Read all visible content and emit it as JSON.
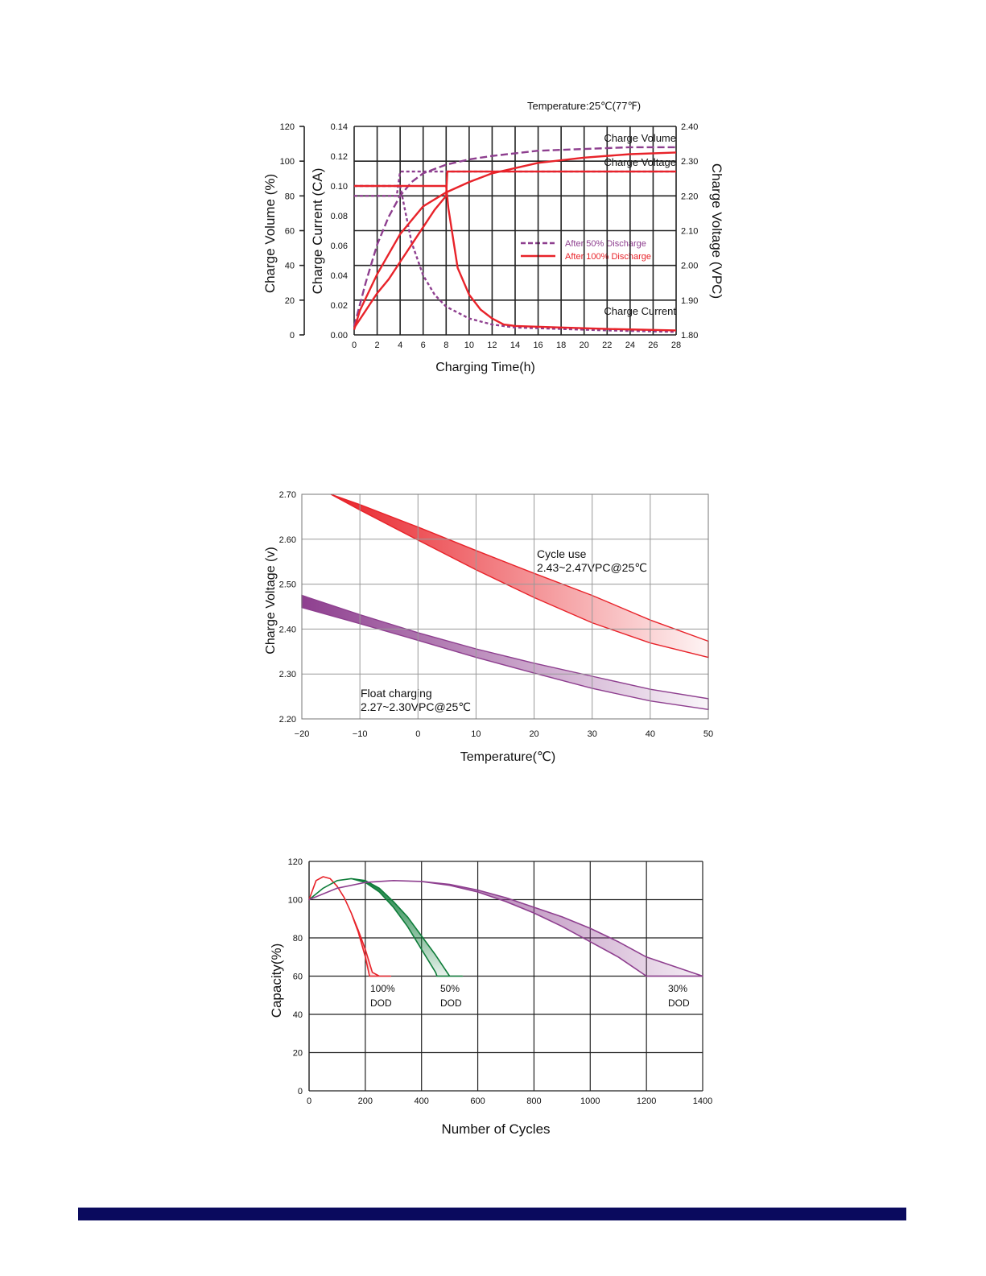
{
  "footer": {
    "bar_color": "#0a0a5e"
  },
  "colors": {
    "red": "#e8232a",
    "purple": "#8e3f8f",
    "green": "#0f7d3a",
    "grid": "#222222",
    "light_grid": "#999999"
  },
  "chart_data": [
    {
      "id": "charging",
      "type": "line",
      "annotation": "Temperature:25℃(77℉)",
      "xlabel": "Charging Time(h)",
      "x_ticks": [
        0,
        2,
        4,
        6,
        8,
        10,
        12,
        14,
        16,
        18,
        20,
        22,
        24,
        26,
        28
      ],
      "xlim": [
        0,
        28
      ],
      "axes": {
        "volume": {
          "label": "Charge Volume (%)",
          "ticks": [
            "0",
            "20",
            "40",
            "60",
            "80",
            "100",
            "120"
          ],
          "ylim": [
            0,
            120
          ]
        },
        "current": {
          "label": "Charge Current (CA)",
          "ticks": [
            "0.00",
            "0.02",
            "0.04",
            "0.06",
            "0.08",
            "0.10",
            "0.12",
            "0.14"
          ],
          "ylim": [
            0,
            0.14
          ]
        },
        "voltage": {
          "label": "Charge Voltage (VPC)",
          "ticks": [
            "1.80",
            "1.90",
            "2.00",
            "2.10",
            "2.20",
            "2.30",
            "2.40"
          ],
          "ylim": [
            1.8,
            2.4
          ]
        }
      },
      "curve_labels": {
        "volume": "Charge Volume",
        "voltage": "Charge Voltage",
        "current": "Charge Current"
      },
      "legend": {
        "position": "center-right",
        "items": [
          {
            "name": "After 50% Discharge",
            "style": "dashed",
            "color": "#8e3f8f"
          },
          {
            "name": "After 100% Discharge",
            "style": "solid",
            "color": "#e8232a"
          }
        ]
      },
      "series": [
        {
          "group": "After 50% Discharge",
          "quantity": "volume",
          "axis": "volume",
          "x": [
            0,
            1,
            2,
            3,
            4,
            5,
            6,
            8,
            10,
            12,
            16,
            20,
            24,
            28
          ],
          "values": [
            5,
            30,
            52,
            68,
            80,
            88,
            93,
            98,
            101,
            103,
            106,
            107,
            108,
            108
          ]
        },
        {
          "group": "After 50% Discharge",
          "quantity": "voltage",
          "axis": "voltage",
          "x": [
            0,
            1,
            2,
            3,
            3.7,
            4,
            28
          ],
          "values": [
            2.2,
            2.2,
            2.2,
            2.2,
            2.2,
            2.27,
            2.27
          ]
        },
        {
          "group": "After 50% Discharge",
          "quantity": "current",
          "axis": "current",
          "x": [
            0,
            4,
            5,
            6,
            7,
            8,
            10,
            12,
            14,
            18,
            22,
            28
          ],
          "values": [
            0.1,
            0.1,
            0.062,
            0.04,
            0.027,
            0.019,
            0.011,
            0.007,
            0.005,
            0.004,
            0.003,
            0.002
          ]
        },
        {
          "group": "After 100% Discharge",
          "quantity": "volume",
          "axis": "volume",
          "x": [
            0,
            0.5,
            2,
            4,
            6,
            8,
            10,
            12,
            14,
            16,
            20,
            24,
            28
          ],
          "values": [
            3,
            14,
            35,
            58,
            74,
            82,
            88,
            93,
            96,
            99,
            102,
            104,
            105
          ]
        },
        {
          "group": "After 100% Discharge",
          "quantity": "voltage",
          "axis": "voltage",
          "x": [
            0,
            1,
            2,
            3,
            4,
            5,
            6,
            7,
            8,
            8.1,
            28
          ],
          "values": [
            1.82,
            1.87,
            1.92,
            1.96,
            2.01,
            2.06,
            2.11,
            2.16,
            2.2,
            2.27,
            2.27
          ]
        },
        {
          "group": "After 100% Discharge",
          "quantity": "current",
          "axis": "current",
          "x": [
            0,
            8,
            8.2,
            9,
            10,
            11,
            12,
            13,
            14,
            18,
            22,
            28
          ],
          "values": [
            0.1,
            0.1,
            0.085,
            0.045,
            0.027,
            0.017,
            0.011,
            0.007,
            0.006,
            0.005,
            0.004,
            0.003
          ]
        }
      ]
    },
    {
      "id": "temperature",
      "type": "area",
      "xlabel": "Temperature(℃)",
      "ylabel": "Charge Voltage  (v)",
      "xlim": [
        -20,
        50
      ],
      "ylim": [
        2.2,
        2.7
      ],
      "x_ticks": [
        "−20",
        "−10",
        "0",
        "10",
        "20",
        "30",
        "40",
        "50"
      ],
      "y_ticks": [
        "2.20",
        "2.30",
        "2.40",
        "2.50",
        "2.60",
        "2.70"
      ],
      "series": [
        {
          "name": "Cycle use",
          "label": "Cycle use",
          "sublabel": "2.43~2.47VPC@25℃",
          "color": "#e8232a",
          "x": [
            -15,
            -10,
            0,
            10,
            20,
            30,
            40,
            50
          ],
          "upper": [
            2.7,
            2.677,
            2.627,
            2.575,
            2.524,
            2.475,
            2.42,
            2.373
          ],
          "lower": [
            2.7,
            2.665,
            2.598,
            2.532,
            2.47,
            2.414,
            2.369,
            2.337
          ]
        },
        {
          "name": "Float charging",
          "label": "Float charging",
          "sublabel": "2.27~2.30VPC@25℃",
          "color": "#8e3f8f",
          "x": [
            -20,
            -10,
            0,
            10,
            20,
            30,
            40,
            50
          ],
          "upper": [
            2.475,
            2.432,
            2.392,
            2.356,
            2.324,
            2.295,
            2.266,
            2.245
          ],
          "lower": [
            2.448,
            2.412,
            2.375,
            2.337,
            2.302,
            2.268,
            2.24,
            2.221
          ]
        }
      ]
    },
    {
      "id": "cycles",
      "type": "area",
      "xlabel": "Number of Cycles",
      "ylabel": "Capacity(%)",
      "xlim": [
        0,
        1400
      ],
      "ylim": [
        0,
        120
      ],
      "x_ticks": [
        "200",
        "400",
        "600",
        "800",
        "1000",
        "1200",
        "1400"
      ],
      "y_ticks": [
        "0",
        "20",
        "40",
        "60",
        "80",
        "100",
        "120"
      ],
      "series": [
        {
          "name": "100% DOD",
          "label_line1": "100%",
          "label_line2": "DOD",
          "color": "#e8232a",
          "x": [
            0,
            25,
            50,
            75,
            100,
            125,
            150,
            175,
            200,
            225,
            250,
            275,
            300
          ],
          "upper": [
            100,
            110,
            112,
            111,
            107,
            101,
            93,
            84,
            74,
            62,
            60,
            60,
            60
          ],
          "lower": [
            100,
            110,
            112,
            111,
            107,
            101,
            93,
            83,
            70,
            60,
            60,
            60,
            60
          ],
          "upper_end": 290,
          "lower_end": 215
        },
        {
          "name": "50% DOD",
          "label_line1": "50%",
          "label_line2": "DOD",
          "color": "#0f7d3a",
          "x": [
            0,
            50,
            100,
            150,
            200,
            250,
            300,
            350,
            400,
            450,
            500,
            550
          ],
          "upper": [
            100,
            106,
            110,
            111,
            110,
            106,
            99,
            91,
            81,
            71,
            60,
            60
          ],
          "lower": [
            100,
            106,
            110,
            111,
            109,
            104,
            96,
            86,
            74,
            62,
            60,
            60
          ],
          "upper_end": 545,
          "lower_end": 455
        },
        {
          "name": "30% DOD",
          "label_line1": "30%",
          "label_line2": "DOD",
          "color": "#8e3f8f",
          "x": [
            0,
            100,
            200,
            300,
            400,
            500,
            600,
            700,
            800,
            900,
            1000,
            1100,
            1200,
            1300,
            1400
          ],
          "upper": [
            100,
            106,
            109,
            110,
            109.5,
            108,
            105,
            101,
            96,
            91,
            85,
            78,
            70,
            65,
            60
          ],
          "lower": [
            100,
            106,
            109,
            110,
            109.5,
            107.5,
            104,
            99,
            93,
            86,
            78,
            70,
            60,
            60,
            60
          ],
          "upper_end": 1400,
          "lower_end": 1200
        }
      ]
    }
  ]
}
